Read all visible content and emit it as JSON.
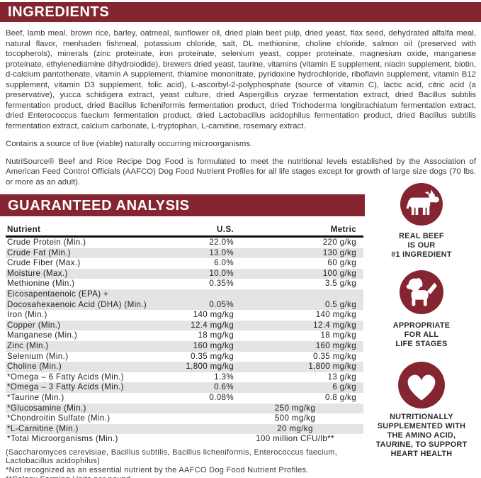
{
  "colors": {
    "maroon": "#862532",
    "row_stripe": "#e4e4e4"
  },
  "ingredients": {
    "header": "INGREDIENTS",
    "body": "Beef, lamb meal, brown rice, barley, oatmeal, sunflower oil, dried plain beet pulp, dried yeast, flax seed, dehydrated alfalfa meal, natural flavor, menhaden fishmeal, potassium chloride, salt, DL methionine, choline chloride, salmon oil (preserved with tocopherols), minerals (zinc proteinate, iron proteinate, selenium yeast, copper proteinate, magnesium oxide, manganese proteinate, ethylenediamine dihydroiodide), brewers dried yeast, taurine, vitamins (vitamin E supplement, niacin supplement, biotin, d-calcium pantothenate, vitamin A supplement, thiamine mononitrate, pyridoxine hydrochloride, riboflavin supplement, vitamin B12 supplement, vitamin D3 supplement, folic acid), L-ascorbyl-2-polyphosphate (source of vitamin C), lactic acid, citric acid (a preservative), yucca schidigera extract, yeast culture, dried Aspergillus oryzae fermentation extract, dried Bacillus subtilis fermentation product, dried Bacillus licheniformis fermentation product, dried Trichoderma longibrachiatum fermentation extract, dried Enterococcus faecium fermentation product, dried Lactobacillus acidophilus fermentation product, dried Bacillus subtilis fermentation extract, calcium carbonate, L-tryptophan, L-carnitine, rosemary extract.",
    "microorganisms_note": "Contains a source of live (viable) naturally occurring microorganisms.",
    "aafco_statement": "NutriSource® Beef and Rice Recipe Dog Food is formulated to meet the nutritional levels established by the Association of American Feed Control Officials (AAFCO) Dog Food Nutrient Profiles for all life stages except for growth of large size dogs (70 lbs. or more as an adult)."
  },
  "guaranteed_analysis": {
    "header": "GUARANTEED ANALYSIS",
    "columns": [
      "Nutrient",
      "U.S.",
      "Metric"
    ],
    "rows": [
      {
        "nutrient": "Crude Protein (Min.)",
        "us": "22.0%",
        "metric": "220 g/kg"
      },
      {
        "nutrient": "Crude Fat (Min.)",
        "us": "13.0%",
        "metric": "130 g/kg"
      },
      {
        "nutrient": "Crude Fiber (Max.)",
        "us": "6.0%",
        "metric": "60 g/kg"
      },
      {
        "nutrient": "Moisture (Max.)",
        "us": "10.0%",
        "metric": "100 g/kg"
      },
      {
        "nutrient": "Methionine (Min.)",
        "us": "0.35%",
        "metric": "3.5 g/kg"
      },
      {
        "nutrient_lines": [
          "Eicosapentaenoic (EPA) +",
          "Docosahexaenoic Acid (DHA) (Min.)"
        ],
        "us": "0.05%",
        "metric": "0.5 g/kg"
      },
      {
        "nutrient": "Iron (Min.)",
        "us": "140 mg/kg",
        "metric": "140 mg/kg"
      },
      {
        "nutrient": "Copper (Min.)",
        "us": "12.4 mg/kg",
        "metric": "12.4 mg/kg"
      },
      {
        "nutrient": "Manganese (Min.)",
        "us": "18 mg/kg",
        "metric": "18 mg/kg"
      },
      {
        "nutrient": "Zinc (Min.)",
        "us": "160 mg/kg",
        "metric": "160 mg/kg"
      },
      {
        "nutrient": "Selenium (Min.)",
        "us": "0.35 mg/kg",
        "metric": "0.35 mg/kg"
      },
      {
        "nutrient": "Choline (Min.)",
        "us": "1,800 mg/kg",
        "metric": "1,800 mg/kg"
      },
      {
        "nutrient": "*Omega – 6 Fatty Acids (Min.)",
        "us": "1.3%",
        "metric": "13 g/kg"
      },
      {
        "nutrient": "*Omega – 3 Fatty Acids (Min.)",
        "us": "0.6%",
        "metric": "6 g/kg"
      },
      {
        "nutrient": "*Taurine (Min.)",
        "us": "0.08%",
        "metric": "0.8 g/kg"
      },
      {
        "nutrient": "*Glucosamine (Min.)",
        "value": "250 mg/kg"
      },
      {
        "nutrient": "*Chondroitin Sulfate (Min.)",
        "value": "500 mg/kg"
      },
      {
        "nutrient": "*L-Carnitine (Min.)",
        "value": "20 mg/kg"
      },
      {
        "nutrient": "*Total Microorganisms (Min.)",
        "value": "100 million CFU/lb**"
      }
    ],
    "footnotes": [
      "(Saccharomyces cerevisiae, Bacillus subtilis, Bacillus licheniformis, Enterococcus faecium, Lactobacillus acidophilus)",
      "*Not recognized as an essential nutrient by the AAFCO Dog Food Nutrient Profiles.",
      "**Colony Forming Units per pound"
    ]
  },
  "badges": [
    {
      "icon": "cow-icon",
      "lines": [
        "REAL BEEF",
        "IS OUR",
        "#1 INGREDIENT"
      ]
    },
    {
      "icon": "dog-icon",
      "lines": [
        "APPROPRIATE",
        "FOR ALL",
        "LIFE STAGES"
      ]
    },
    {
      "icon": "heart-icon",
      "lines": [
        "NUTRITIONALLY",
        "SUPPLEMENTED WITH",
        "THE AMINO ACID,",
        "TAURINE, TO SUPPORT",
        "HEART HEALTH"
      ]
    }
  ]
}
